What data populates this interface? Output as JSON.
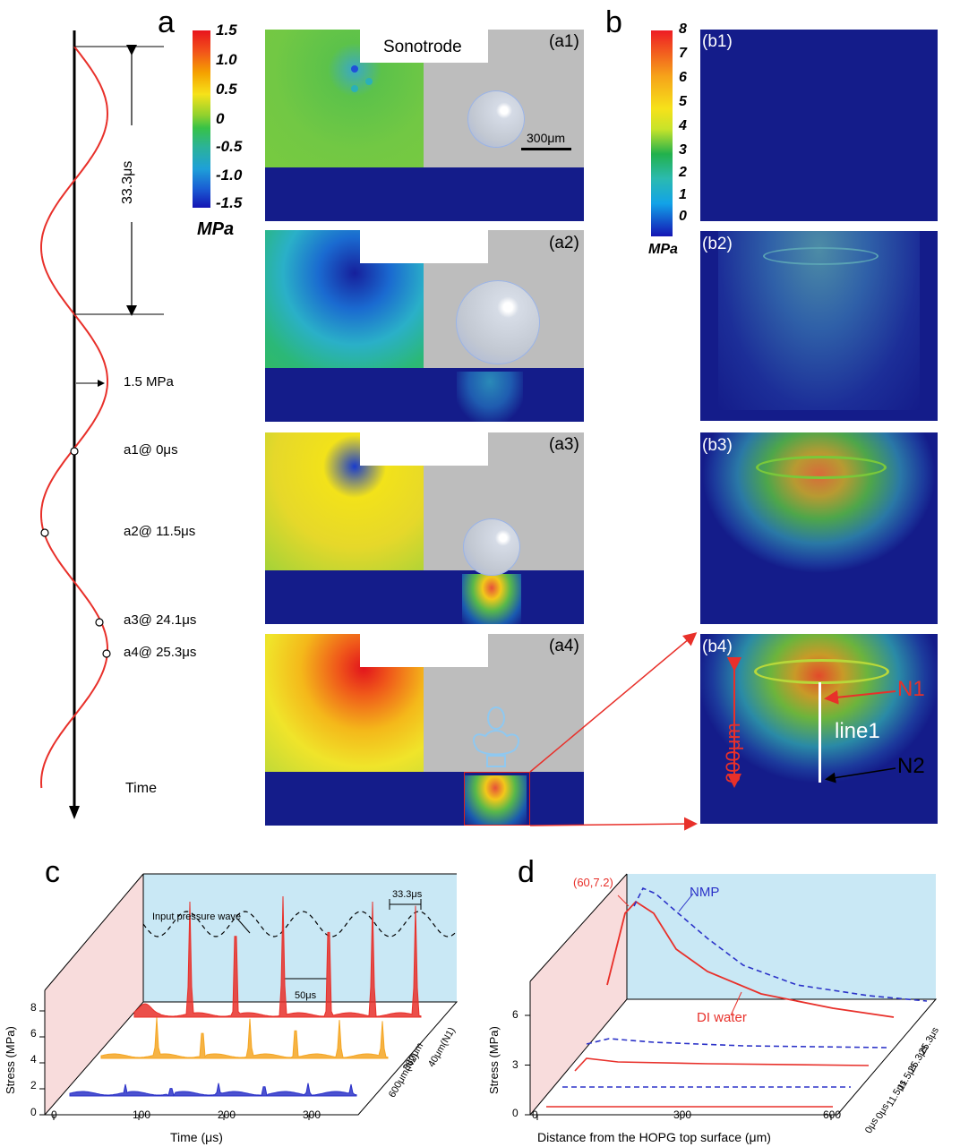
{
  "panel_labels": {
    "a": "a",
    "b": "b",
    "c": "c",
    "d": "d"
  },
  "timeline": {
    "period_label": "33.3μs",
    "amplitude_label": "1.5 MPa",
    "points": [
      "a1@ 0μs",
      "a2@ 11.5μs",
      "a3@ 24.1μs",
      "a4@ 25.3μs"
    ],
    "axis_label": "Time"
  },
  "colorbar_a": {
    "ticks": [
      "1.5",
      "1.0",
      "0.5",
      "0",
      "-0.5",
      "-1.0",
      "-1.5"
    ],
    "unit": "MPa"
  },
  "colorbar_b": {
    "ticks": [
      "8",
      "7",
      "6",
      "5",
      "4",
      "3",
      "2",
      "1",
      "0"
    ],
    "unit": "MPa"
  },
  "panels_a": {
    "a1": "(a1)",
    "a2": "(a2)",
    "a3": "(a3)",
    "a4": "(a4)",
    "sonotrode": "Sonotrode",
    "scalebar": "300μm"
  },
  "panels_b": {
    "b1": "(b1)",
    "b2": "(b2)",
    "b3": "(b3)",
    "b4": "(b4)",
    "n1": "N1",
    "n2": "N2",
    "line1": "line1",
    "depth": "600μm"
  },
  "chart_data": [
    {
      "type": "line",
      "panel": "c",
      "xlabel": "Time (μs)",
      "ylabel": "Stress (MPa)",
      "xticks": [
        "0",
        "100",
        "200",
        "300"
      ],
      "yticks": [
        "0",
        "2",
        "4",
        "6",
        "8"
      ],
      "ylim": [
        0,
        9
      ],
      "annotations": [
        "Input pressure wave",
        "33.3μs",
        "50μs"
      ],
      "series": [
        {
          "name": "40μm(N1)",
          "color": "#e8302a",
          "peak_values": [
            8.6,
            8.4,
            9.0,
            8.8,
            8.6,
            8.3
          ]
        },
        {
          "name": "380μm",
          "color": "#f5a623",
          "peak_values": [
            3.5,
            3.0,
            3.4,
            3.3,
            3.3,
            3.2
          ]
        },
        {
          "name": "600μm(N2)",
          "color": "#2b32c8",
          "peak_values": [
            1.0,
            0.9,
            1.1,
            1.1,
            1.1,
            1.0
          ]
        }
      ]
    },
    {
      "type": "line",
      "panel": "d",
      "xlabel": "Distance from the HOPG top surface (μm)",
      "ylabel": "Stress (MPa)",
      "xticks": [
        "0",
        "300",
        "600"
      ],
      "yticks": [
        "0",
        "3",
        "6"
      ],
      "annotations": [
        "(60,7.2)",
        "NMP",
        "DI water"
      ],
      "depth_labels": [
        "25.3μs",
        "25.3μs",
        "11.5μs",
        "11.5μs",
        "0μs",
        "0μs"
      ],
      "series": [
        {
          "name": "DI water",
          "time": "25.3μs",
          "color": "#e8302a",
          "x": [
            0,
            60,
            150,
            300,
            450,
            600
          ],
          "y": [
            3.8,
            7.2,
            5.0,
            3.3,
            2.8,
            2.6
          ]
        },
        {
          "name": "NMP",
          "time": "25.3μs",
          "color": "#2b32c8",
          "x": [
            0,
            60,
            150,
            300,
            450,
            600
          ],
          "y": [
            7.0,
            7.6,
            5.2,
            3.6,
            3.1,
            2.9
          ]
        }
      ]
    }
  ]
}
